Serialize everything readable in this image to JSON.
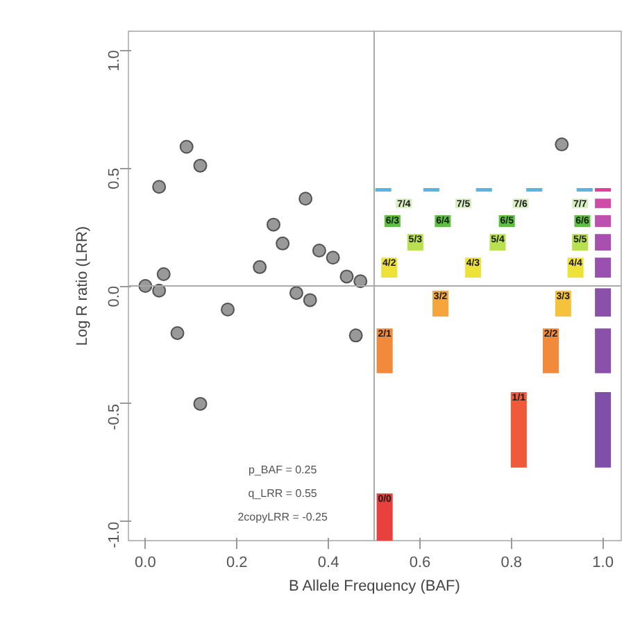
{
  "chart_data": {
    "type": "scatter",
    "xlabel": "B Allele Frequency (BAF)",
    "ylabel": "Log R ratio (LRR)",
    "xlim": [
      -0.037,
      1.04
    ],
    "ylim": [
      -1.08,
      1.08
    ],
    "xticks": [
      {
        "value": 0,
        "label": "0.0"
      },
      0.2,
      0.4,
      0.6,
      0.8,
      {
        "value": 1,
        "label": "1.0"
      }
    ],
    "yticks": [
      {
        "value": -1.0,
        "label": "-1.0"
      },
      -0.5,
      {
        "value": 0,
        "label": "0.0"
      },
      0.5,
      {
        "value": 1,
        "label": "1.0"
      }
    ],
    "grid": false,
    "marker": "circle",
    "ref_lines": [
      {
        "axis": "x",
        "value": 0.5,
        "color": "#aaaaaa"
      },
      {
        "axis": "y",
        "value": 0,
        "color": "#aaaaaa"
      }
    ],
    "series": [
      {
        "color": "#333333",
        "x": [
          0.0,
          0.03,
          0.03,
          0.04,
          0.07,
          0.09,
          0.12,
          0.12,
          0.18,
          0.25,
          0.28,
          0.3,
          0.33,
          0.35,
          0.36,
          0.38,
          0.41,
          0.44,
          0.46,
          0.47,
          0.91
        ],
        "values": [
          0.0,
          -0.02,
          0.42,
          0.05,
          -0.2,
          0.59,
          0.51,
          -0.5,
          -0.1,
          0.08,
          0.26,
          0.18,
          -0.03,
          0.37,
          -0.06,
          0.15,
          0.12,
          0.04,
          -0.21,
          0.02,
          0.6
        ]
      },
      {
        "type": "bar",
        "x": [
          0.52,
          0.625,
          0.74,
          0.85,
          0.96,
          1.0
        ],
        "base": [
          0.4,
          0.4,
          0.4,
          0.4,
          0.4,
          0.4
        ],
        "values": [
          0.015,
          0.015,
          0.015,
          0.015,
          0.015,
          0.015
        ],
        "colors": [
          "#5ab4dc",
          "#5ab4dc",
          "#5ab4dc",
          "#5ab4dc",
          "#5ab4dc",
          "#e0409a"
        ]
      },
      {
        "type": "bar",
        "x": [
          0.565,
          0.695,
          0.82,
          0.95,
          1.0
        ],
        "base": [
          0.33,
          0.33,
          0.33,
          0.33,
          0.33
        ],
        "values": [
          0.04,
          0.04,
          0.04,
          0.04,
          0.04
        ],
        "colors": [
          "#d6eec0",
          "#d6eec0",
          "#d6eec0",
          "#d6eec0",
          "#d04aa8"
        ]
      },
      {
        "type": "bar",
        "x": [
          0.54,
          0.65,
          0.79,
          0.955,
          1.0
        ],
        "base": [
          0.25,
          0.25,
          0.25,
          0.25,
          0.25
        ],
        "values": [
          0.05,
          0.05,
          0.05,
          0.05,
          0.05
        ],
        "colors": [
          "#5cc040",
          "#5cc040",
          "#5cc040",
          "#5cc040",
          "#c050b0"
        ]
      },
      {
        "type": "bar",
        "x": [
          0.59,
          0.77,
          0.95,
          1.0
        ],
        "base": [
          0.15,
          0.15,
          0.15,
          0.15
        ],
        "values": [
          0.07,
          0.07,
          0.07,
          0.07
        ],
        "colors": [
          "#b8e050",
          "#b8e050",
          "#b8e050",
          "#a850b0"
        ]
      },
      {
        "type": "bar",
        "x": [
          0.533,
          0.716,
          0.94,
          1.0
        ],
        "base": [
          0.035,
          0.035,
          0.035,
          0.035
        ],
        "values": [
          0.085,
          0.085,
          0.085,
          0.085
        ],
        "colors": [
          "#ece23a",
          "#ece23a",
          "#ece23a",
          "#9a50b0"
        ]
      },
      {
        "type": "bar",
        "x": [
          0.645,
          0.913,
          1.0
        ],
        "base": [
          -0.13,
          -0.13,
          -0.13
        ],
        "values": [
          0.11,
          0.11,
          0.12
        ],
        "colors": [
          "#f5a53c",
          "#f5c23c",
          "#8a50aa"
        ]
      },
      {
        "type": "bar",
        "x": [
          0.523,
          0.886,
          1.0
        ],
        "base": [
          -0.37,
          -0.37,
          -0.37
        ],
        "values": [
          0.19,
          0.19,
          0.19
        ],
        "colors": [
          "#f28a3c",
          "#f28a3c",
          "#8a50aa"
        ]
      },
      {
        "type": "bar",
        "x": [
          0.816,
          1.0
        ],
        "base": [
          -0.77,
          -0.77
        ],
        "values": [
          0.32,
          0.32
        ],
        "colors": [
          "#ee5a3a",
          "#8050a8"
        ]
      },
      {
        "type": "bar",
        "x": [
          0.523
        ],
        "base": [
          -1.08
        ],
        "values": [
          0.2
        ],
        "colors": [
          "#e8403c"
        ]
      }
    ],
    "annotations": [
      {
        "text": "0/0",
        "x": 0.523,
        "y": -0.88
      },
      {
        "text": "1/1",
        "x": 0.816,
        "y": -0.45
      },
      {
        "text": "2/1",
        "x": 0.523,
        "y": -0.18
      },
      {
        "text": "2/2",
        "x": 0.886,
        "y": -0.18
      },
      {
        "text": "3/2",
        "x": 0.645,
        "y": -0.02
      },
      {
        "text": "3/3",
        "x": 0.913,
        "y": -0.02
      },
      {
        "text": "4/2",
        "x": 0.533,
        "y": 0.12
      },
      {
        "text": "4/3",
        "x": 0.716,
        "y": 0.12
      },
      {
        "text": "4/4",
        "x": 0.94,
        "y": 0.12
      },
      {
        "text": "5/3",
        "x": 0.59,
        "y": 0.22
      },
      {
        "text": "5/4",
        "x": 0.77,
        "y": 0.22
      },
      {
        "text": "5/5",
        "x": 0.95,
        "y": 0.22
      },
      {
        "text": "6/3",
        "x": 0.54,
        "y": 0.3
      },
      {
        "text": "6/4",
        "x": 0.65,
        "y": 0.3
      },
      {
        "text": "6/5",
        "x": 0.79,
        "y": 0.3
      },
      {
        "text": "6/6",
        "x": 0.955,
        "y": 0.3
      },
      {
        "text": "7/4",
        "x": 0.565,
        "y": 0.37
      },
      {
        "text": "7/5",
        "x": 0.695,
        "y": 0.37
      },
      {
        "text": "7/6",
        "x": 0.82,
        "y": 0.37
      },
      {
        "text": "7/7",
        "x": 0.95,
        "y": 0.37
      },
      "p_BAF = 0.25",
      "q_LRR = 0.55",
      "2copyLRR = -0.25"
    ]
  }
}
